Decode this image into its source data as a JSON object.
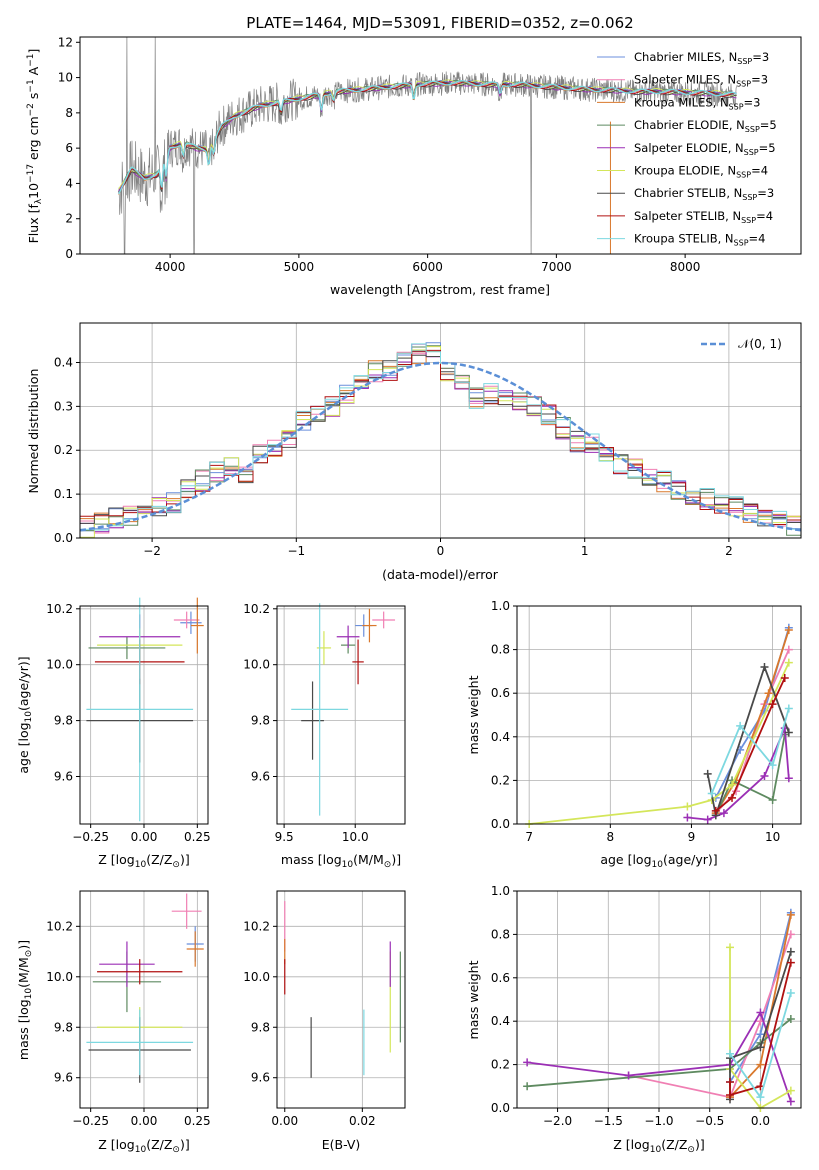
{
  "colors": {
    "chabrier_miles": "#6b8fdc",
    "salpeter_miles": "#f07fb3",
    "kroupa_miles": "#d9782c",
    "chabrier_elodie": "#5e8a60",
    "salpeter_elodie": "#9b2fb5",
    "kroupa_elodie": "#d4e65a",
    "chabrier_stelib": "#4a4a4a",
    "salpeter_stelib": "#b01010",
    "kroupa_stelib": "#7dd8e0",
    "observed": "#808080",
    "gaussian": "#5b8fd6"
  },
  "spectrum": {
    "title": "PLATE=1464, MJD=53091, FIBERID=0352, z=0.062",
    "xlabel": "wavelength [Angstrom, rest frame]",
    "ylabel": "Flux [f",
    "ylabel_sub": "λ",
    "ylabel_rest": "10",
    "ylabel_exp": "−17",
    "ylabel_tail": " erg cm",
    "ylabel_exp2": "−2",
    "ylabel_tail2": " s",
    "ylabel_exp3": "−1",
    "ylabel_tail3": " A",
    "ylabel_exp4": "−1",
    "ylabel_end": "]",
    "xticks": [
      "4000",
      "5000",
      "6000",
      "7000",
      "8000"
    ],
    "yticks": [
      "0",
      "2",
      "4",
      "6",
      "8",
      "10",
      "12"
    ],
    "legend": [
      {
        "name": "Chabrier MILES, N",
        "sub": "SSP",
        "tail": "=3",
        "color": "chabrier_miles"
      },
      {
        "name": "Salpeter MILES, N",
        "sub": "SSP",
        "tail": "=3",
        "color": "salpeter_miles"
      },
      {
        "name": "Kroupa MILES, N",
        "sub": "SSP",
        "tail": "=3",
        "color": "kroupa_miles"
      },
      {
        "name": "Chabrier ELODIE, N",
        "sub": "SSP",
        "tail": "=5",
        "color": "chabrier_elodie"
      },
      {
        "name": "Salpeter ELODIE, N",
        "sub": "SSP",
        "tail": "=5",
        "color": "salpeter_elodie"
      },
      {
        "name": "Kroupa ELODIE, N",
        "sub": "SSP",
        "tail": "=4",
        "color": "kroupa_elodie"
      },
      {
        "name": "Chabrier STELIB, N",
        "sub": "SSP",
        "tail": "=3",
        "color": "chabrier_stelib"
      },
      {
        "name": "Salpeter STELIB, N",
        "sub": "SSP",
        "tail": "=4",
        "color": "salpeter_stelib"
      },
      {
        "name": "Kroupa STELIB, N",
        "sub": "SSP",
        "tail": "=4",
        "color": "kroupa_stelib"
      }
    ]
  },
  "residuals": {
    "xlabel": "(data-model)/error",
    "ylabel": "Normed distribution",
    "xticks": [
      "−2",
      "−1",
      "0",
      "1",
      "2"
    ],
    "yticks": [
      "0.0",
      "0.1",
      "0.2",
      "0.3",
      "0.4"
    ],
    "legend_label": "𝒩(0, 1)"
  },
  "panels": {
    "age_label": "age  [log",
    "age_sub": "10",
    "age_tail": "(age/yr)]",
    "z_label": "Z [log",
    "z_sub": "10",
    "z_tail": "(Z/Z",
    "z_sub2": "⊙",
    "z_end": ")]",
    "mass_label": "mass [log",
    "mass_sub": "10",
    "mass_tail": "(M/M",
    "mass_sub2": "⊙",
    "mass_end": ")]",
    "ebv_label": "E(B-V)",
    "mass_weight_label": "mass weight",
    "age_yticks": [
      "9.6",
      "9.8",
      "10.0",
      "10.2"
    ],
    "mass_yticks": [
      "9.6",
      "9.8",
      "10.0",
      "10.2"
    ],
    "z_xticks": [
      "−0.25",
      "0.00",
      "0.25"
    ],
    "massx_xticks": [
      "9.5",
      "10.0"
    ],
    "ebv_xticks": [
      "0.00",
      "0.02"
    ],
    "mw_yticks": [
      "0.0",
      "0.2",
      "0.4",
      "0.6",
      "0.8",
      "1.0"
    ],
    "agex_xticks": [
      "7",
      "8",
      "9",
      "10"
    ],
    "zx_xticks": [
      "−2.0",
      "−1.5",
      "−1.0",
      "−0.5",
      "0.0"
    ]
  },
  "chart_data": [
    {
      "type": "line",
      "title": "PLATE=1464, MJD=53091, FIBERID=0352, z=0.062",
      "xlabel": "wavelength [Angstrom, rest frame]",
      "ylabel": "Flux [fλ10^-17 erg cm^-2 s^-1 A^-1]",
      "xlim": [
        3300,
        8900
      ],
      "ylim": [
        0,
        12.3
      ],
      "continuum": {
        "x": [
          3600,
          3700,
          3800,
          3900,
          4000,
          4100,
          4200,
          4300,
          4400,
          4500,
          4700,
          5000,
          5300,
          5600,
          5900,
          6200,
          6500,
          6700,
          6900,
          7100,
          7300,
          7400,
          7600,
          7800,
          8000,
          8200,
          8400
        ],
        "y": [
          3.5,
          4.8,
          4.3,
          4.5,
          6.0,
          6.3,
          6.0,
          5.9,
          7.2,
          7.8,
          8.4,
          8.8,
          9.2,
          9.4,
          9.6,
          9.7,
          9.6,
          9.6,
          9.5,
          9.4,
          9.3,
          9.3,
          9.2,
          9.2,
          9.15,
          9.1,
          9.0
        ]
      },
      "legend": [
        "Chabrier MILES, N_SSP=3",
        "Salpeter MILES, N_SSP=3",
        "Kroupa MILES, N_SSP=3",
        "Chabrier ELODIE, N_SSP=5",
        "Salpeter ELODIE, N_SSP=5",
        "Kroupa ELODIE, N_SSP=4",
        "Chabrier STELIB, N_SSP=3",
        "Salpeter STELIB, N_SSP=4",
        "Kroupa STELIB, N_SSP=4"
      ]
    },
    {
      "type": "line",
      "xlabel": "(data-model)/error",
      "ylabel": "Normed distribution",
      "xlim": [
        -2.5,
        2.5
      ],
      "ylim": [
        0,
        0.49
      ],
      "bin_width": 0.1,
      "histogram_centers": [
        -2.45,
        -2.35,
        -2.25,
        -2.15,
        -2.05,
        -1.95,
        -1.85,
        -1.75,
        -1.65,
        -1.55,
        -1.45,
        -1.35,
        -1.25,
        -1.15,
        -1.05,
        -0.95,
        -0.85,
        -0.75,
        -0.65,
        -0.55,
        -0.45,
        -0.35,
        -0.25,
        -0.15,
        -0.05,
        0.05,
        0.15,
        0.25,
        0.35,
        0.45,
        0.55,
        0.65,
        0.75,
        0.85,
        0.95,
        1.05,
        1.15,
        1.25,
        1.35,
        1.45,
        1.55,
        1.65,
        1.75,
        1.85,
        1.95,
        2.05,
        2.15,
        2.25,
        2.35,
        2.45
      ],
      "histogram_mean": [
        0.025,
        0.035,
        0.045,
        0.05,
        0.052,
        0.07,
        0.08,
        0.11,
        0.13,
        0.15,
        0.16,
        0.14,
        0.19,
        0.2,
        0.23,
        0.27,
        0.28,
        0.3,
        0.33,
        0.36,
        0.38,
        0.38,
        0.4,
        0.42,
        0.43,
        0.38,
        0.35,
        0.32,
        0.33,
        0.32,
        0.31,
        0.3,
        0.28,
        0.25,
        0.22,
        0.22,
        0.2,
        0.17,
        0.16,
        0.14,
        0.13,
        0.11,
        0.1,
        0.09,
        0.08,
        0.07,
        0.06,
        0.05,
        0.04,
        0.03
      ],
      "gaussian": {
        "name": "𝒩(0, 1)",
        "mean": 0,
        "sigma": 1
      },
      "legend_position": "top-right"
    },
    {
      "type": "scatter",
      "xlabel": "Z [log10(Z/Z⊙)]",
      "ylabel": "age  [log10(age/yr)]",
      "xlim": [
        -0.3,
        0.3
      ],
      "ylim": [
        9.43,
        10.21
      ],
      "points": [
        {
          "model": "chabrier_miles",
          "x": 0.22,
          "y": 10.15,
          "xerr": 0.05,
          "yerr": 0.04
        },
        {
          "model": "salpeter_miles",
          "x": 0.2,
          "y": 10.16,
          "xerr": 0.06,
          "yerr": 0.03
        },
        {
          "model": "kroupa_miles",
          "x": 0.25,
          "y": 10.14,
          "xerr": 0.03,
          "yerr": 0.1
        },
        {
          "model": "chabrier_elodie",
          "x": -0.08,
          "y": 10.06,
          "xerr": 0.18,
          "yerr": 0.04
        },
        {
          "model": "salpeter_elodie",
          "x": -0.02,
          "y": 10.1,
          "xerr": 0.19,
          "yerr": 0.08
        },
        {
          "model": "kroupa_elodie",
          "x": -0.02,
          "y": 10.07,
          "xerr": 0.2,
          "yerr": 0.06
        },
        {
          "model": "chabrier_stelib",
          "x": -0.02,
          "y": 9.8,
          "xerr": 0.25,
          "yerr": 0.15
        },
        {
          "model": "salpeter_stelib",
          "x": -0.02,
          "y": 10.01,
          "xerr": 0.21,
          "yerr": 0.08
        },
        {
          "model": "kroupa_stelib",
          "x": -0.02,
          "y": 9.84,
          "xerr": 0.25,
          "yerr": 0.4
        }
      ]
    },
    {
      "type": "scatter",
      "xlabel": "mass [log10(M/M⊙)]",
      "ylabel": "",
      "xlim": [
        9.45,
        10.35
      ],
      "ylim": [
        9.43,
        10.21
      ],
      "points": [
        {
          "model": "chabrier_miles",
          "x": 10.06,
          "y": 10.14,
          "xerr": 0.06,
          "yerr": 0.04
        },
        {
          "model": "salpeter_miles",
          "x": 10.2,
          "y": 10.16,
          "xerr": 0.08,
          "yerr": 0.03
        },
        {
          "model": "kroupa_miles",
          "x": 10.1,
          "y": 10.14,
          "xerr": 0.05,
          "yerr": 0.06
        },
        {
          "model": "chabrier_elodie",
          "x": 9.95,
          "y": 10.07,
          "xerr": 0.05,
          "yerr": 0.03
        },
        {
          "model": "salpeter_elodie",
          "x": 9.95,
          "y": 10.1,
          "xerr": 0.08,
          "yerr": 0.04
        },
        {
          "model": "kroupa_elodie",
          "x": 9.78,
          "y": 10.06,
          "xerr": 0.05,
          "yerr": 0.06
        },
        {
          "model": "chabrier_stelib",
          "x": 9.7,
          "y": 9.8,
          "xerr": 0.08,
          "yerr": 0.14
        },
        {
          "model": "salpeter_stelib",
          "x": 10.02,
          "y": 10.01,
          "xerr": 0.04,
          "yerr": 0.08
        },
        {
          "model": "kroupa_stelib",
          "x": 9.75,
          "y": 9.84,
          "xerr": 0.2,
          "yerr": 0.38
        }
      ]
    },
    {
      "type": "line",
      "xlabel": "age  [log10(age/yr)]",
      "ylabel": "mass weight",
      "xlim": [
        6.85,
        10.35
      ],
      "ylim": [
        0,
        1
      ],
      "series": [
        {
          "model": "chabrier_miles",
          "x": [
            9.3,
            9.6,
            9.9,
            10.2
          ],
          "y": [
            0.12,
            0.34,
            0.52,
            0.9
          ]
        },
        {
          "model": "salpeter_miles",
          "x": [
            9.3,
            9.55,
            9.9,
            10.2
          ],
          "y": [
            0.05,
            0.15,
            0.55,
            0.8
          ]
        },
        {
          "model": "kroupa_miles",
          "x": [
            9.3,
            9.55,
            9.95,
            10.2
          ],
          "y": [
            0.05,
            0.2,
            0.6,
            0.89
          ]
        },
        {
          "model": "chabrier_elodie",
          "x": [
            9.3,
            9.5,
            10.0,
            10.15
          ],
          "y": [
            0.04,
            0.2,
            0.11,
            0.41
          ]
        },
        {
          "model": "salpeter_elodie",
          "x": [
            8.95,
            9.2,
            9.4,
            9.9,
            10.15,
            10.2
          ],
          "y": [
            0.03,
            0.02,
            0.05,
            0.22,
            0.44,
            0.21
          ]
        },
        {
          "model": "kroupa_elodie",
          "x": [
            7.0,
            8.95,
            9.25,
            9.5,
            10.2
          ],
          "y": [
            0.0,
            0.08,
            0.11,
            0.18,
            0.74
          ]
        },
        {
          "model": "chabrier_stelib",
          "x": [
            9.2,
            9.3,
            9.9,
            10.2
          ],
          "y": [
            0.23,
            0.04,
            0.72,
            0.42
          ]
        },
        {
          "model": "salpeter_stelib",
          "x": [
            9.3,
            9.5,
            10.0,
            10.15
          ],
          "y": [
            0.06,
            0.12,
            0.55,
            0.67
          ]
        },
        {
          "model": "kroupa_stelib",
          "x": [
            9.25,
            9.6,
            10.0,
            10.2
          ],
          "y": [
            0.14,
            0.45,
            0.27,
            0.53
          ]
        }
      ]
    },
    {
      "type": "scatter",
      "xlabel": "Z [log10(Z/Z⊙)]",
      "ylabel": "mass [log10(M/M⊙)]",
      "xlim": [
        -0.3,
        0.3
      ],
      "ylim": [
        9.48,
        10.34
      ],
      "points": [
        {
          "model": "chabrier_miles",
          "x": 0.24,
          "y": 10.13,
          "xerr": 0.04,
          "yerr": 0.07
        },
        {
          "model": "salpeter_miles",
          "x": 0.2,
          "y": 10.26,
          "xerr": 0.07,
          "yerr": 0.07
        },
        {
          "model": "kroupa_miles",
          "x": 0.24,
          "y": 10.11,
          "xerr": 0.04,
          "yerr": 0.07
        },
        {
          "model": "chabrier_elodie",
          "x": -0.08,
          "y": 9.98,
          "xerr": 0.16,
          "yerr": 0.12
        },
        {
          "model": "salpeter_elodie",
          "x": -0.08,
          "y": 10.05,
          "xerr": 0.13,
          "yerr": 0.09
        },
        {
          "model": "kroupa_elodie",
          "x": -0.02,
          "y": 9.8,
          "xerr": 0.2,
          "yerr": 0.08
        },
        {
          "model": "chabrier_stelib",
          "x": -0.02,
          "y": 9.71,
          "xerr": 0.24,
          "yerr": 0.13
        },
        {
          "model": "salpeter_stelib",
          "x": -0.02,
          "y": 10.02,
          "xerr": 0.2,
          "yerr": 0.05
        },
        {
          "model": "kroupa_stelib",
          "x": -0.02,
          "y": 9.74,
          "xerr": 0.25,
          "yerr": 0.13
        }
      ]
    },
    {
      "type": "scatter",
      "xlabel": "E(B-V)",
      "ylabel": "",
      "xlim": [
        -0.002,
        0.031
      ],
      "ylim": [
        9.48,
        10.34
      ],
      "points": [
        {
          "model": "salpeter_miles",
          "x": 0.0,
          "y": 10.2,
          "yerr": 0.1
        },
        {
          "model": "kroupa_miles",
          "x": 0.0,
          "y": 10.1,
          "yerr": 0.05
        },
        {
          "model": "salpeter_stelib",
          "x": 0.0,
          "y": 10.0,
          "yerr": 0.07
        },
        {
          "model": "chabrier_stelib",
          "x": 0.0068,
          "y": 9.72,
          "yerr": 0.12
        },
        {
          "model": "kroupa_stelib",
          "x": 0.0204,
          "y": 9.74,
          "yerr": 0.13
        },
        {
          "model": "kroupa_elodie",
          "x": 0.0272,
          "y": 9.9,
          "yerr": 0.2
        },
        {
          "model": "salpeter_elodie",
          "x": 0.0272,
          "y": 10.05,
          "yerr": 0.09
        },
        {
          "model": "chabrier_elodie",
          "x": 0.0298,
          "y": 9.92,
          "yerr": 0.18
        }
      ]
    },
    {
      "type": "line",
      "xlabel": "Z [log10(Z/Z⊙)]",
      "ylabel": "mass weight",
      "xlim": [
        -2.4,
        0.4
      ],
      "ylim": [
        0,
        1
      ],
      "series": [
        {
          "model": "chabrier_miles",
          "x": [
            -0.3,
            0.0,
            0.3
          ],
          "y": [
            0.12,
            0.34,
            0.9
          ]
        },
        {
          "model": "salpeter_miles",
          "x": [
            -1.3,
            -0.3,
            0.0,
            0.3
          ],
          "y": [
            0.15,
            0.05,
            0.4,
            0.8
          ]
        },
        {
          "model": "kroupa_miles",
          "x": [
            -0.3,
            0.0,
            0.3
          ],
          "y": [
            0.05,
            0.2,
            0.89
          ]
        },
        {
          "model": "chabrier_elodie",
          "x": [
            -2.3,
            -0.3,
            0.0,
            0.3
          ],
          "y": [
            0.1,
            0.18,
            0.3,
            0.41
          ]
        },
        {
          "model": "salpeter_elodie",
          "x": [
            -2.3,
            -1.3,
            -0.3,
            0.0,
            0.3
          ],
          "y": [
            0.21,
            0.15,
            0.2,
            0.44,
            0.03
          ]
        },
        {
          "model": "kroupa_elodie",
          "x": [
            -0.3,
            -0.3,
            0.0,
            0.3
          ],
          "y": [
            0.74,
            0.18,
            0.0,
            0.08
          ]
        },
        {
          "model": "chabrier_stelib",
          "x": [
            -0.3,
            -0.3,
            0.0,
            0.3
          ],
          "y": [
            0.04,
            0.23,
            0.28,
            0.72
          ]
        },
        {
          "model": "salpeter_stelib",
          "x": [
            -0.3,
            -0.3,
            0.0,
            0.3
          ],
          "y": [
            0.12,
            0.06,
            0.1,
            0.67
          ]
        },
        {
          "model": "kroupa_stelib",
          "x": [
            -0.3,
            0.0,
            0.3
          ],
          "y": [
            0.25,
            0.05,
            0.53
          ]
        }
      ]
    }
  ]
}
